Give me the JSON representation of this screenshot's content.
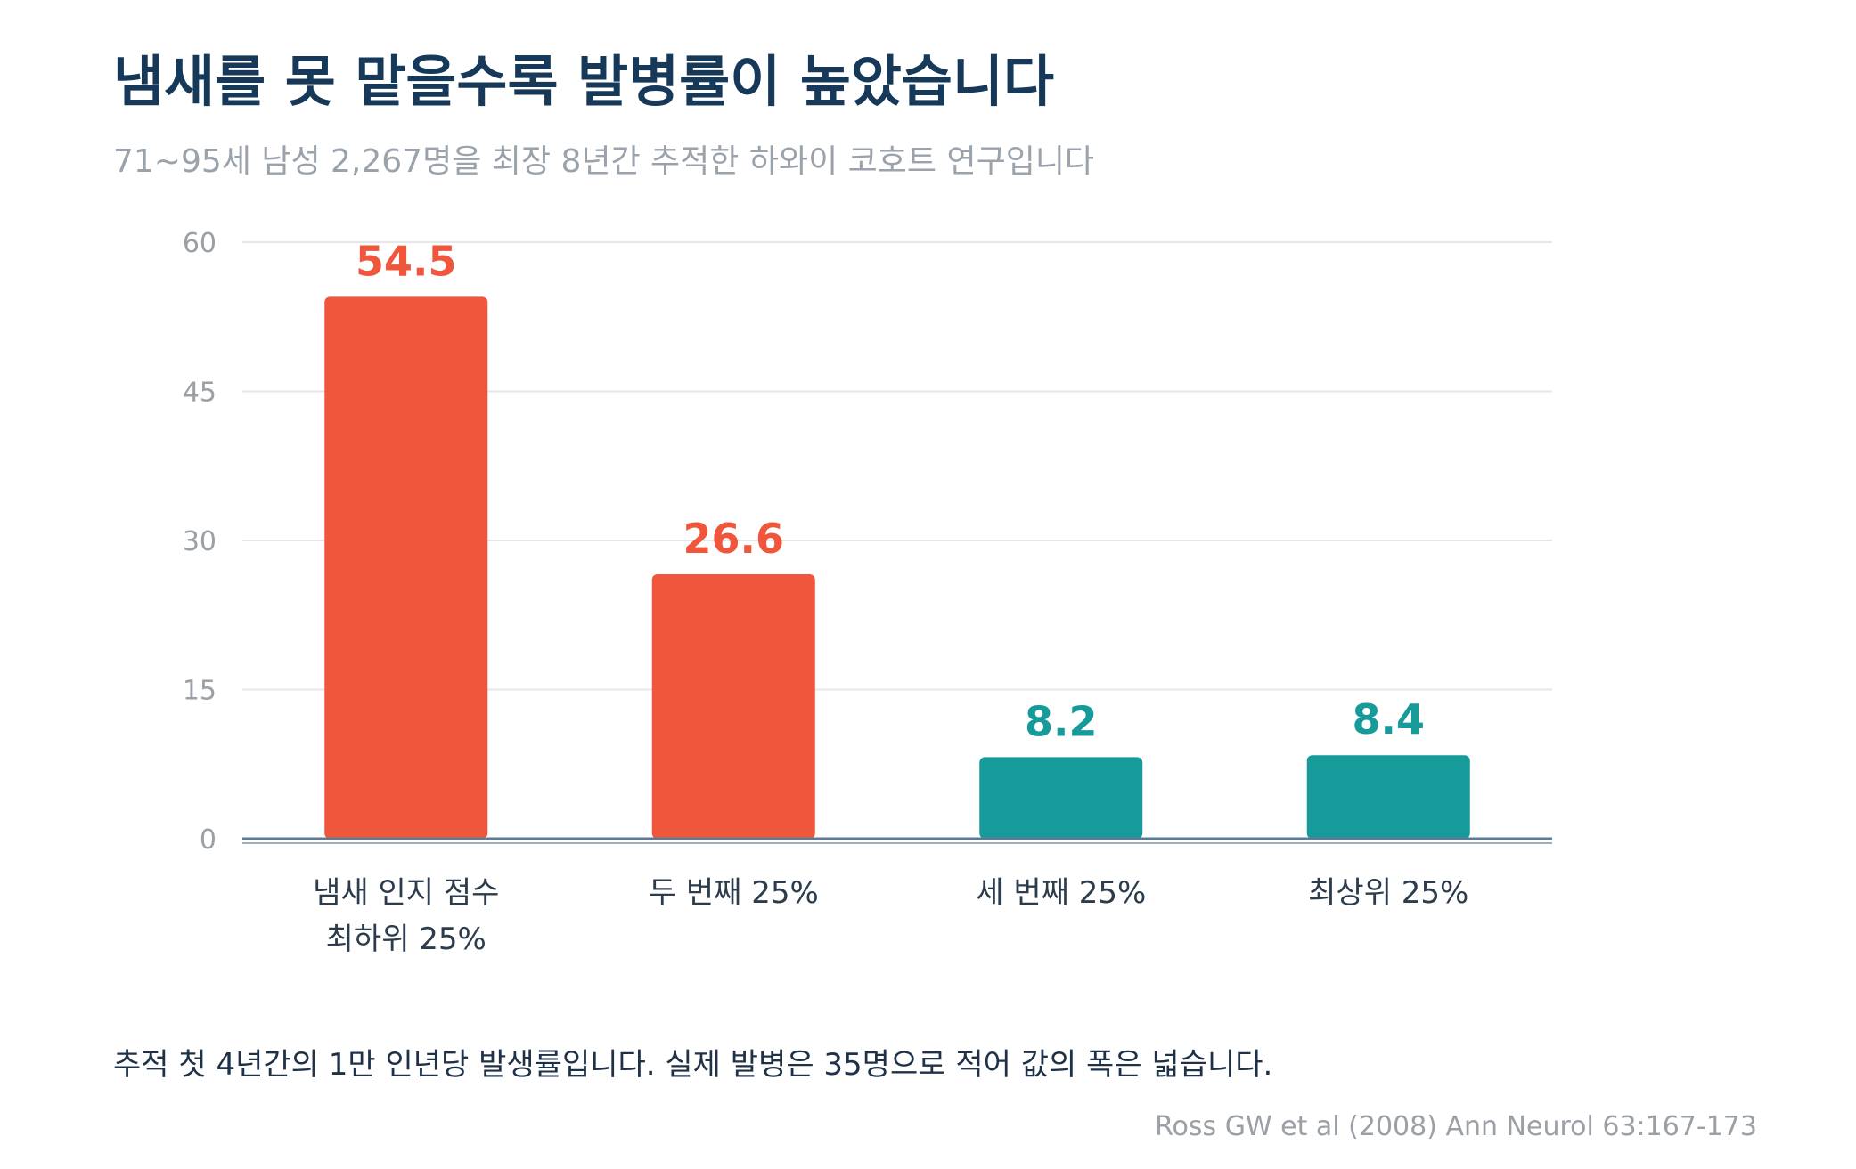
{
  "title": "냄새를 못 맡을수록 발병률이 높았습니다",
  "subtitle": "71~95세 남성 2,267명을 최장 8년간 추적한 하와이 코호트 연구입니다",
  "note": "추적 첫 4년간의 1만 인년당 발생률입니다. 실제 발병은 35명으로 적어 값의 폭은 넓습니다.",
  "source": "Ross GW et al (2008) Ann Neurol 63:167-173",
  "colors": {
    "low": "#ef563b",
    "high": "#169a9a",
    "grid": "#e6e6e6",
    "axis": "#5d7b96"
  },
  "chart_data": {
    "type": "bar",
    "categories": [
      [
        "냄새 인지 점수",
        "최하위 25%"
      ],
      [
        "두 번째 25%"
      ],
      [
        "세 번째 25%"
      ],
      [
        "최상위 25%"
      ]
    ],
    "values": [
      54.5,
      26.6,
      8.2,
      8.4
    ],
    "value_labels": [
      "54.5",
      "26.6",
      "8.2",
      "8.4"
    ],
    "bar_colors": [
      "low",
      "low",
      "high",
      "high"
    ],
    "ylim": [
      0,
      60
    ],
    "yticks": [
      0,
      15,
      30,
      45,
      60
    ],
    "ytick_labels": [
      "0",
      "15",
      "30",
      "45",
      "60"
    ],
    "grid": true,
    "legend": "none"
  }
}
